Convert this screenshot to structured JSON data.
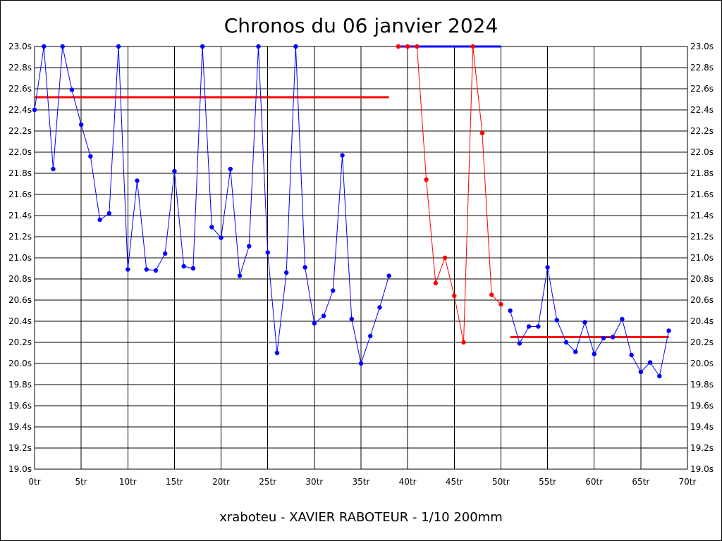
{
  "chart_data": {
    "type": "line",
    "title": "Chronos du 06 janvier 2024",
    "footer": "xraboteu - XAVIER RABOTEUR - 1/10 200mm",
    "xlim": [
      0,
      70
    ],
    "ylim": [
      19.0,
      23.0
    ],
    "grid": true,
    "x_ticks": [
      0,
      5,
      10,
      15,
      20,
      25,
      30,
      35,
      40,
      45,
      50,
      55,
      60,
      65,
      70
    ],
    "x_tick_labels": [
      "0tr",
      "5tr",
      "10tr",
      "15tr",
      "20tr",
      "25tr",
      "30tr",
      "35tr",
      "40tr",
      "45tr",
      "50tr",
      "55tr",
      "60tr",
      "65tr",
      "70tr"
    ],
    "y_ticks": [
      19.0,
      19.2,
      19.4,
      19.6,
      19.8,
      20.0,
      20.2,
      20.4,
      20.6,
      20.8,
      21.0,
      21.2,
      21.4,
      21.6,
      21.8,
      22.0,
      22.2,
      22.4,
      22.6,
      22.8,
      23.0
    ],
    "y_tick_labels": [
      "19.0s",
      "19.2s",
      "19.4s",
      "19.6s",
      "19.8s",
      "20.0s",
      "20.2s",
      "20.4s",
      "20.6s",
      "20.8s",
      "21.0s",
      "21.2s",
      "21.4s",
      "21.6s",
      "21.8s",
      "22.0s",
      "22.2s",
      "22.4s",
      "22.6s",
      "22.8s",
      "23.0s"
    ],
    "series": [
      {
        "color": "#0000ff",
        "x": [
          0,
          1,
          2,
          3,
          4,
          5,
          6,
          7,
          8,
          9,
          10,
          11,
          12,
          13,
          14,
          15,
          16,
          17,
          18,
          19,
          20,
          21,
          22,
          23,
          24,
          25,
          26,
          27,
          28,
          29,
          30,
          31,
          32,
          33,
          34,
          35,
          36,
          37,
          38
        ],
        "y": [
          22.4,
          23.0,
          21.84,
          23.0,
          22.59,
          22.26,
          21.96,
          21.36,
          21.42,
          23.0,
          20.89,
          21.73,
          20.89,
          20.88,
          21.04,
          21.82,
          20.92,
          20.9,
          23.0,
          21.29,
          21.19,
          21.84,
          20.83,
          21.11,
          23.0,
          21.05,
          20.1,
          20.86,
          23.0,
          20.91,
          20.38,
          20.45,
          20.69,
          21.97,
          20.42,
          20.0,
          20.26,
          20.53,
          20.83
        ]
      },
      {
        "color": "#ff0000",
        "x": [
          39,
          40,
          41,
          42,
          43,
          44,
          45,
          46,
          47,
          48,
          49,
          50
        ],
        "y": [
          23.0,
          23.0,
          23.0,
          21.74,
          20.76,
          21.0,
          20.64,
          20.2,
          23.0,
          22.18,
          20.65,
          20.56
        ]
      },
      {
        "color": "#0000ff",
        "x": [
          51,
          52,
          53,
          54,
          55,
          56,
          57,
          58,
          59,
          60,
          61,
          62,
          63,
          64,
          65,
          66,
          67,
          68
        ],
        "y": [
          20.5,
          20.19,
          20.35,
          20.35,
          20.91,
          20.41,
          20.2,
          20.11,
          20.39,
          20.09,
          20.24,
          20.25,
          20.42,
          20.08,
          19.92,
          20.01,
          19.88,
          20.31
        ]
      }
    ],
    "reference_lines": [
      {
        "color": "#ff0000",
        "x": [
          0,
          38
        ],
        "y": 22.52
      },
      {
        "color": "#0000ff",
        "x": [
          39,
          50
        ],
        "y": 23.0
      },
      {
        "color": "#ff0000",
        "x": [
          51,
          68
        ],
        "y": 20.25
      }
    ]
  }
}
